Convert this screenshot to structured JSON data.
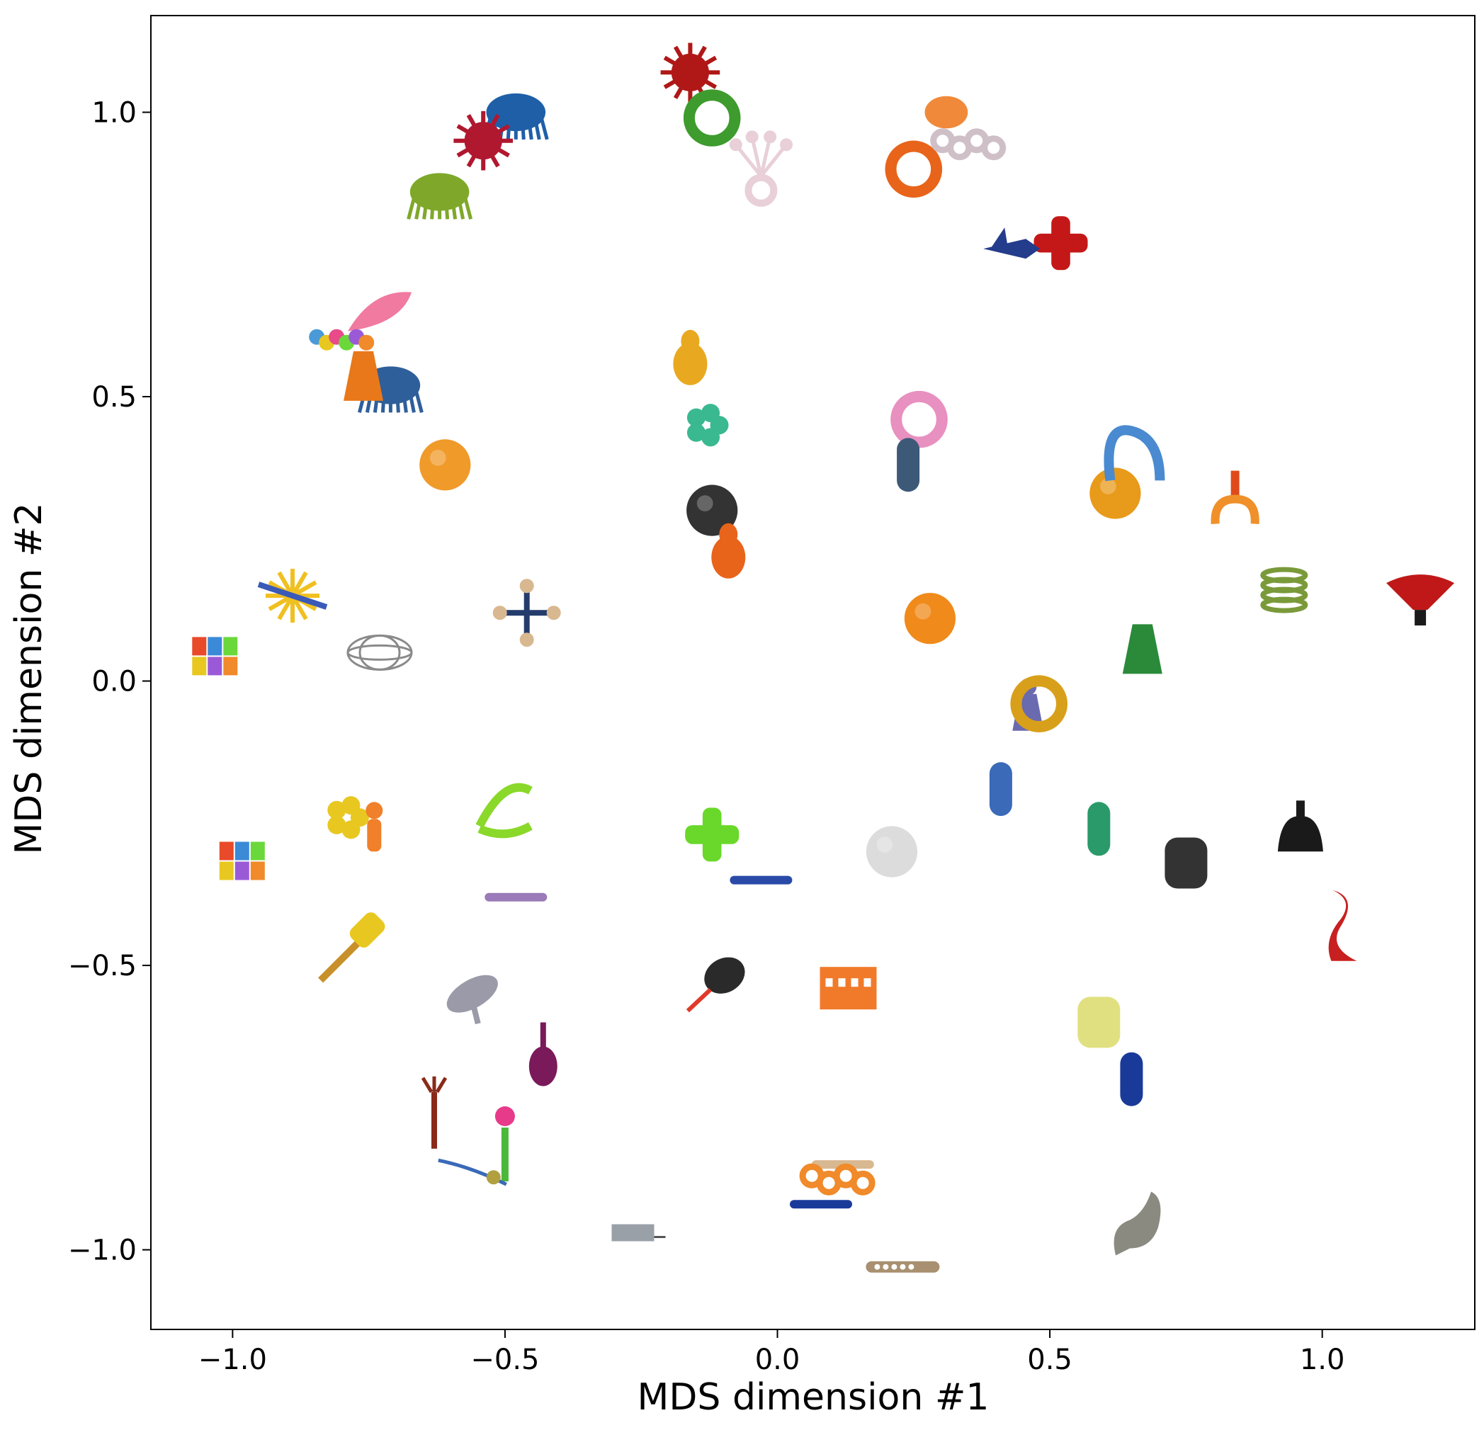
{
  "chart_data": {
    "type": "scatter",
    "title": "",
    "xlabel": "MDS dimension #1",
    "ylabel": "MDS dimension #2",
    "xlim": [
      -1.15,
      1.28
    ],
    "ylim": [
      -1.14,
      1.17
    ],
    "xticks": [
      -1.0,
      -0.5,
      0.0,
      0.5,
      1.0
    ],
    "xtick_labels": [
      "−1.0",
      "−0.5",
      "0.0",
      "0.5",
      "1.0"
    ],
    "yticks": [
      -1.0,
      -0.5,
      0.0,
      0.5,
      1.0
    ],
    "ytick_labels": [
      "−1.0",
      "−0.5",
      "0.0",
      "0.5",
      "1.0"
    ],
    "grid": false,
    "legend": "none",
    "points": [
      {
        "x": -0.16,
        "y": 1.07,
        "color": "#b01818",
        "shape": "spiky-ball"
      },
      {
        "x": -0.12,
        "y": 0.99,
        "color": "#3e9b2e",
        "shape": "ring"
      },
      {
        "x": -0.03,
        "y": 0.9,
        "color": "#e8cfd8",
        "shape": "flower"
      },
      {
        "x": -0.48,
        "y": 0.99,
        "color": "#1f5fa8",
        "shape": "mop"
      },
      {
        "x": -0.54,
        "y": 0.95,
        "color": "#b0182f",
        "shape": "spiky-ball"
      },
      {
        "x": -0.62,
        "y": 0.85,
        "color": "#7fa82a",
        "shape": "mop"
      },
      {
        "x": 0.25,
        "y": 0.9,
        "color": "#e8641a",
        "shape": "ring"
      },
      {
        "x": 0.35,
        "y": 0.95,
        "color": "#cfc0c8",
        "shape": "chain"
      },
      {
        "x": 0.31,
        "y": 1.0,
        "color": "#f08a3a",
        "shape": "blob"
      },
      {
        "x": 0.52,
        "y": 0.77,
        "color": "#c41818",
        "shape": "cross"
      },
      {
        "x": 0.43,
        "y": 0.76,
        "color": "#243c8c",
        "shape": "rocket"
      },
      {
        "x": -0.73,
        "y": 0.64,
        "color": "#f07aa0",
        "shape": "feather"
      },
      {
        "x": -0.8,
        "y": 0.6,
        "color": "#4a9ad8",
        "shape": "beads"
      },
      {
        "x": -0.71,
        "y": 0.51,
        "color": "#2f5f9a",
        "shape": "mop"
      },
      {
        "x": -0.76,
        "y": 0.53,
        "color": "#e8781a",
        "shape": "cone"
      },
      {
        "x": -0.61,
        "y": 0.38,
        "color": "#f09a2a",
        "shape": "ball"
      },
      {
        "x": -0.16,
        "y": 0.57,
        "color": "#e8a820",
        "shape": "pear"
      },
      {
        "x": -0.13,
        "y": 0.45,
        "color": "#3ab890",
        "shape": "cluster"
      },
      {
        "x": -0.12,
        "y": 0.3,
        "color": "#333333",
        "shape": "ball"
      },
      {
        "x": -0.09,
        "y": 0.23,
        "color": "#e8641a",
        "shape": "pear"
      },
      {
        "x": 0.26,
        "y": 0.46,
        "color": "#e890c0",
        "shape": "ring"
      },
      {
        "x": 0.24,
        "y": 0.38,
        "color": "#3c5a78",
        "shape": "tube"
      },
      {
        "x": 0.62,
        "y": 0.33,
        "color": "#e89a1a",
        "shape": "ball"
      },
      {
        "x": 0.65,
        "y": 0.39,
        "color": "#4a8ad0",
        "shape": "loop"
      },
      {
        "x": 0.84,
        "y": 0.32,
        "color": "#f0902a",
        "shape": "claw"
      },
      {
        "x": 0.93,
        "y": 0.16,
        "color": "#7a9a3a",
        "shape": "spring"
      },
      {
        "x": 1.18,
        "y": 0.15,
        "color": "#c01818",
        "shape": "dome"
      },
      {
        "x": 0.28,
        "y": 0.11,
        "color": "#f08a1a",
        "shape": "ball"
      },
      {
        "x": 0.67,
        "y": 0.05,
        "color": "#2a8a3a",
        "shape": "cone"
      },
      {
        "x": 0.46,
        "y": -0.04,
        "color": "#6a6ab0",
        "shape": "pawn"
      },
      {
        "x": 0.48,
        "y": -0.04,
        "color": "#d8a01a",
        "shape": "ring"
      },
      {
        "x": -0.89,
        "y": 0.15,
        "color": "#f0c020",
        "shape": "star"
      },
      {
        "x": -1.03,
        "y": 0.04,
        "color": "#e8a020",
        "shape": "blocks"
      },
      {
        "x": -0.73,
        "y": 0.05,
        "color": "#8a8a8a",
        "shape": "wire-ball"
      },
      {
        "x": -0.46,
        "y": 0.12,
        "color": "#243c6c",
        "shape": "jack"
      },
      {
        "x": 0.41,
        "y": -0.19,
        "color": "#3a6ab8",
        "shape": "tube"
      },
      {
        "x": 0.59,
        "y": -0.26,
        "color": "#2a9a6a",
        "shape": "tube"
      },
      {
        "x": 0.75,
        "y": -0.32,
        "color": "#333333",
        "shape": "cylinder"
      },
      {
        "x": 0.96,
        "y": -0.26,
        "color": "#1a1a1a",
        "shape": "bell"
      },
      {
        "x": 1.04,
        "y": -0.43,
        "color": "#c82020",
        "shape": "vase"
      },
      {
        "x": 0.21,
        "y": -0.3,
        "color": "#dcdcdc",
        "shape": "ball"
      },
      {
        "x": -0.12,
        "y": -0.27,
        "color": "#6ad82a",
        "shape": "cross"
      },
      {
        "x": -0.03,
        "y": -0.35,
        "color": "#2a4aa8",
        "shape": "stick"
      },
      {
        "x": -0.5,
        "y": -0.23,
        "color": "#8ad82a",
        "shape": "clam"
      },
      {
        "x": -0.79,
        "y": -0.24,
        "color": "#e8c820",
        "shape": "cluster"
      },
      {
        "x": -0.74,
        "y": -0.26,
        "color": "#f0802a",
        "shape": "figure"
      },
      {
        "x": -0.98,
        "y": -0.32,
        "color": "#e84a2a",
        "shape": "blocks"
      },
      {
        "x": -0.48,
        "y": -0.38,
        "color": "#9a7ab8",
        "shape": "stick"
      },
      {
        "x": -0.78,
        "y": -0.47,
        "color": "#c8902a",
        "shape": "hammer"
      },
      {
        "x": -0.56,
        "y": -0.55,
        "color": "#9a9aa8",
        "shape": "disc"
      },
      {
        "x": -0.43,
        "y": -0.66,
        "color": "#7a1a5a",
        "shape": "maraca"
      },
      {
        "x": -0.11,
        "y": -0.53,
        "color": "#2a2a2a",
        "shape": "bulb"
      },
      {
        "x": 0.13,
        "y": -0.54,
        "color": "#f07a2a",
        "shape": "crate"
      },
      {
        "x": 0.59,
        "y": -0.6,
        "color": "#e0e080",
        "shape": "cylinder"
      },
      {
        "x": 0.65,
        "y": -0.7,
        "color": "#1a3a9a",
        "shape": "tube"
      },
      {
        "x": -0.63,
        "y": -0.76,
        "color": "#8a2a1a",
        "shape": "fork"
      },
      {
        "x": -0.5,
        "y": -0.81,
        "color": "#4ab83a",
        "shape": "tulip"
      },
      {
        "x": -0.56,
        "y": -0.86,
        "color": "#3a6ab8",
        "shape": "wire"
      },
      {
        "x": 0.12,
        "y": -0.85,
        "color": "#d8b890",
        "shape": "stick"
      },
      {
        "x": 0.11,
        "y": -0.87,
        "color": "#f08a2a",
        "shape": "chain"
      },
      {
        "x": 0.08,
        "y": -0.92,
        "color": "#1a3a9a",
        "shape": "stick"
      },
      {
        "x": 0.66,
        "y": -0.96,
        "color": "#8a8a80",
        "shape": "wave"
      },
      {
        "x": -0.26,
        "y": -0.97,
        "color": "#9aa0a8",
        "shape": "box"
      },
      {
        "x": 0.23,
        "y": -1.03,
        "color": "#a89070",
        "shape": "paddle"
      }
    ]
  }
}
